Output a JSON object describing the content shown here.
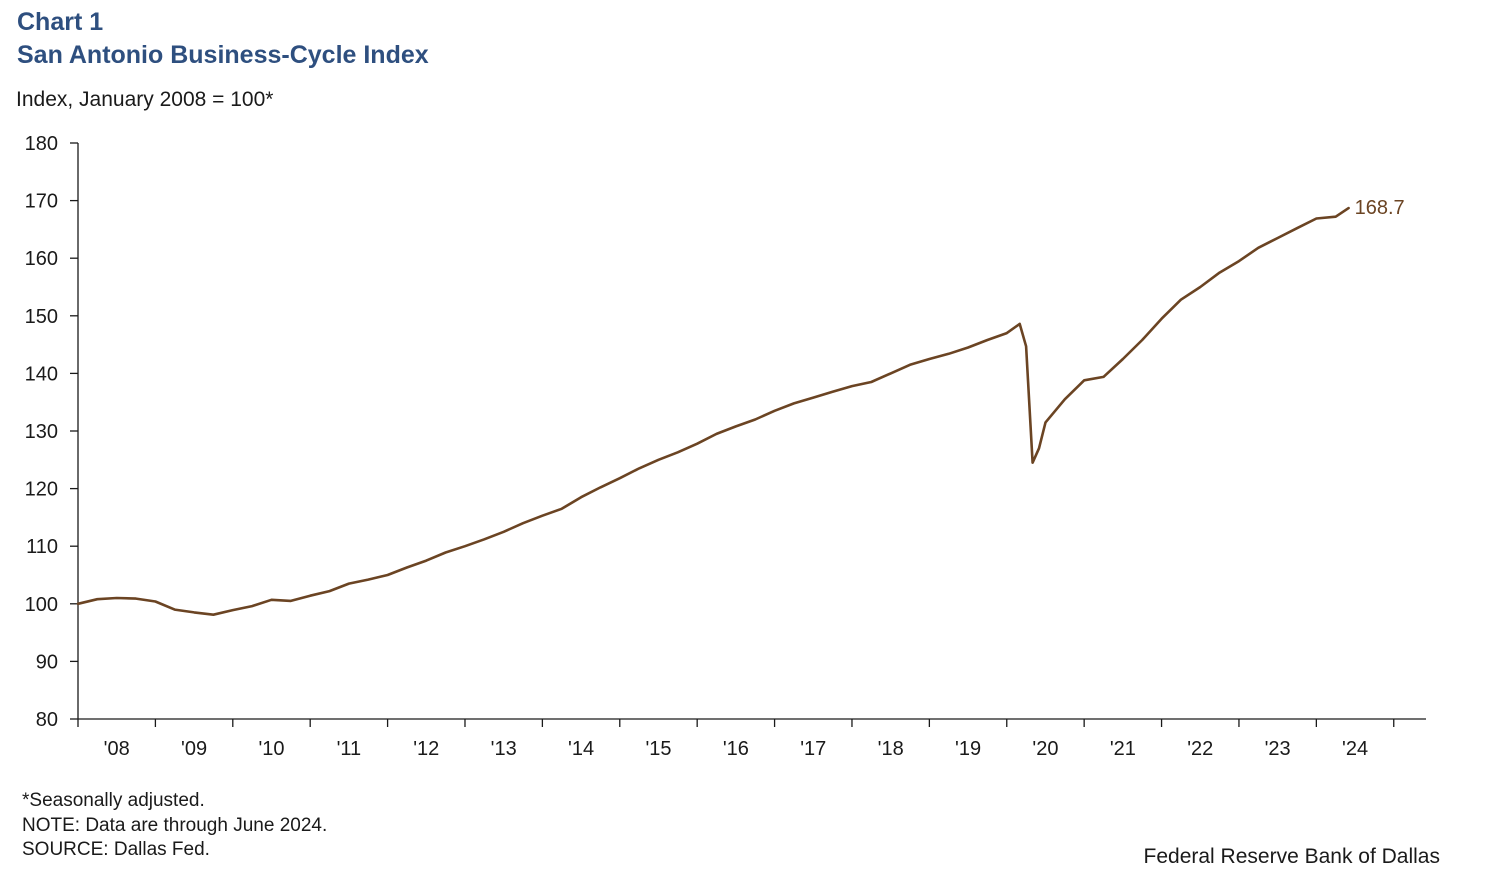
{
  "header": {
    "chart_number": "Chart 1",
    "title": "San Antonio Business-Cycle Index",
    "y_unit": "Index, January 2008 = 100*"
  },
  "footnotes": {
    "seasonal": "*Seasonally adjusted.",
    "note": "NOTE: Data are through June 2024.",
    "source": "SOURCE: Dallas Fed."
  },
  "credit": "Federal Reserve Bank of Dallas",
  "colors": {
    "line": "#6b4423",
    "axis": "#1a1a1a",
    "title": "#2e4f7f"
  },
  "chart_data": {
    "type": "line",
    "title": "San Antonio Business-Cycle Index",
    "ylabel": "Index, January 2008 = 100*",
    "xlabel": "",
    "ylim": [
      80,
      180
    ],
    "y_ticks": [
      80,
      90,
      100,
      110,
      120,
      130,
      140,
      150,
      160,
      170,
      180
    ],
    "x_tick_labels": [
      "'08",
      "'09",
      "'10",
      "'11",
      "'12",
      "'13",
      "'14",
      "'15",
      "'16",
      "'17",
      "'18",
      "'19",
      "'20",
      "'21",
      "'22",
      "'23",
      "'24"
    ],
    "x_range": [
      "2008-01",
      "2025-06"
    ],
    "grid": false,
    "end_label": "168.7",
    "series": [
      {
        "values": [
          [
            "2008-01",
            100.0
          ],
          [
            "2008-04",
            100.8
          ],
          [
            "2008-07",
            101.0
          ],
          [
            "2008-10",
            100.9
          ],
          [
            "2009-01",
            100.4
          ],
          [
            "2009-04",
            99.0
          ],
          [
            "2009-07",
            98.5
          ],
          [
            "2009-10",
            98.1
          ],
          [
            "2010-01",
            98.9
          ],
          [
            "2010-04",
            99.6
          ],
          [
            "2010-07",
            100.7
          ],
          [
            "2010-10",
            100.5
          ],
          [
            "2011-01",
            101.4
          ],
          [
            "2011-04",
            102.2
          ],
          [
            "2011-07",
            103.5
          ],
          [
            "2011-10",
            104.2
          ],
          [
            "2012-01",
            105.0
          ],
          [
            "2012-04",
            106.3
          ],
          [
            "2012-07",
            107.5
          ],
          [
            "2012-10",
            108.9
          ],
          [
            "2013-01",
            110.0
          ],
          [
            "2013-04",
            111.2
          ],
          [
            "2013-07",
            112.5
          ],
          [
            "2013-10",
            114.0
          ],
          [
            "2014-01",
            115.3
          ],
          [
            "2014-04",
            116.5
          ],
          [
            "2014-07",
            118.5
          ],
          [
            "2014-10",
            120.2
          ],
          [
            "2015-01",
            121.8
          ],
          [
            "2015-04",
            123.5
          ],
          [
            "2015-07",
            125.0
          ],
          [
            "2015-10",
            126.3
          ],
          [
            "2016-01",
            127.8
          ],
          [
            "2016-04",
            129.5
          ],
          [
            "2016-07",
            130.8
          ],
          [
            "2016-10",
            132.0
          ],
          [
            "2017-01",
            133.5
          ],
          [
            "2017-04",
            134.8
          ],
          [
            "2017-07",
            135.8
          ],
          [
            "2017-10",
            136.8
          ],
          [
            "2018-01",
            137.8
          ],
          [
            "2018-04",
            138.5
          ],
          [
            "2018-07",
            140.0
          ],
          [
            "2018-10",
            141.5
          ],
          [
            "2019-01",
            142.5
          ],
          [
            "2019-04",
            143.4
          ],
          [
            "2019-07",
            144.5
          ],
          [
            "2019-10",
            145.8
          ],
          [
            "2020-01",
            147.0
          ],
          [
            "2020-03",
            148.6
          ],
          [
            "2020-04",
            144.7
          ],
          [
            "2020-05",
            124.5
          ],
          [
            "2020-06",
            127.0
          ],
          [
            "2020-07",
            131.5
          ],
          [
            "2020-10",
            135.5
          ],
          [
            "2021-01",
            138.8
          ],
          [
            "2021-04",
            139.4
          ],
          [
            "2021-07",
            142.5
          ],
          [
            "2021-10",
            145.8
          ],
          [
            "2022-01",
            149.5
          ],
          [
            "2022-04",
            152.8
          ],
          [
            "2022-07",
            155.0
          ],
          [
            "2022-10",
            157.5
          ],
          [
            "2023-01",
            159.5
          ],
          [
            "2023-04",
            161.8
          ],
          [
            "2023-07",
            163.5
          ],
          [
            "2023-10",
            165.2
          ],
          [
            "2024-01",
            166.9
          ],
          [
            "2024-04",
            167.2
          ],
          [
            "2024-06",
            168.7
          ]
        ]
      }
    ]
  }
}
